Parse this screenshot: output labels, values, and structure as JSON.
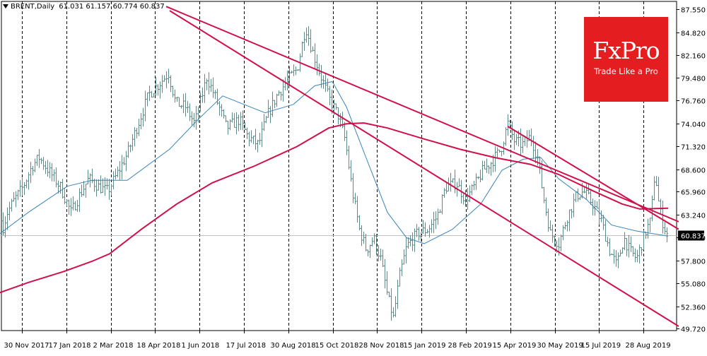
{
  "header": {
    "symbol": "BRENT,Daily",
    "open": "61.031",
    "high": "61.157",
    "low": "60.774",
    "close": "60.837"
  },
  "logo": {
    "brand": "FxPro",
    "tagline": "Trade Like a Pro",
    "color": "#e41e20"
  },
  "colors": {
    "candle": "#5a8a8a",
    "ma_short": "#3a84b8",
    "ma_long": "#d0104a",
    "trendline": "#d0104a",
    "price_label_bg": "#000000"
  },
  "chart_data": {
    "type": "candlestick",
    "ylim": [
      49.5,
      88.5
    ],
    "grid": "vertical dashed",
    "y_ticks": [
      "87.550",
      "84.820",
      "82.160",
      "79.480",
      "76.760",
      "74.040",
      "71.320",
      "68.600",
      "65.960",
      "63.240",
      "60.520",
      "57.800",
      "55.080",
      "52.360",
      "49.720"
    ],
    "x_ticks": [
      "30 Nov 2017",
      "17 Jan 2018",
      "2 Mar 2018",
      "18 Apr 2018",
      "1 Jun 2018",
      "17 Jul 2018",
      "30 Aug 2018",
      "15 Oct 2018",
      "28 Nov 2018",
      "15 Jan 2019",
      "28 Feb 2019",
      "15 Apr 2019",
      "30 May 2019",
      "15 Jul 2019",
      "28 Aug 2019"
    ],
    "last_price": "60.837",
    "price_keyframes": [
      [
        0,
        62.5
      ],
      [
        4,
        61.8
      ],
      [
        10,
        63.5
      ],
      [
        20,
        65.0
      ],
      [
        32,
        66.5
      ],
      [
        45,
        69.0
      ],
      [
        55,
        70.0
      ],
      [
        68,
        68.5
      ],
      [
        85,
        66.5
      ],
      [
        100,
        63.5
      ],
      [
        112,
        65.5
      ],
      [
        125,
        67.5
      ],
      [
        140,
        66.5
      ],
      [
        152,
        66.0
      ],
      [
        165,
        68.0
      ],
      [
        180,
        70.5
      ],
      [
        195,
        74.0
      ],
      [
        210,
        77.5
      ],
      [
        222,
        78.5
      ],
      [
        238,
        80.0
      ],
      [
        248,
        76.5
      ],
      [
        262,
        76.0
      ],
      [
        275,
        74.0
      ],
      [
        292,
        79.5
      ],
      [
        305,
        77.0
      ],
      [
        320,
        73.5
      ],
      [
        338,
        74.5
      ],
      [
        350,
        72.5
      ],
      [
        365,
        71.5
      ],
      [
        378,
        75.0
      ],
      [
        392,
        77.5
      ],
      [
        405,
        79.0
      ],
      [
        420,
        80.5
      ],
      [
        432,
        85.5
      ],
      [
        440,
        83.0
      ],
      [
        452,
        80.0
      ],
      [
        465,
        77.0
      ],
      [
        478,
        75.0
      ],
      [
        488,
        72.0
      ],
      [
        498,
        66.0
      ],
      [
        508,
        61.5
      ],
      [
        518,
        59.0
      ],
      [
        528,
        60.5
      ],
      [
        538,
        58.0
      ],
      [
        548,
        53.5
      ],
      [
        556,
        51.0
      ],
      [
        565,
        56.0
      ],
      [
        575,
        59.5
      ],
      [
        590,
        61.0
      ],
      [
        605,
        61.5
      ],
      [
        618,
        63.0
      ],
      [
        630,
        66.5
      ],
      [
        645,
        67.0
      ],
      [
        658,
        65.0
      ],
      [
        670,
        66.5
      ],
      [
        683,
        68.5
      ],
      [
        695,
        69.5
      ],
      [
        708,
        71.0
      ],
      [
        718,
        74.0
      ],
      [
        727,
        72.0
      ],
      [
        738,
        71.5
      ],
      [
        750,
        72.5
      ],
      [
        760,
        70.0
      ],
      [
        768,
        65.5
      ],
      [
        778,
        61.0
      ],
      [
        790,
        59.8
      ],
      [
        802,
        63.0
      ],
      [
        815,
        65.5
      ],
      [
        825,
        66.0
      ],
      [
        838,
        64.5
      ],
      [
        850,
        62.5
      ],
      [
        862,
        59.0
      ],
      [
        872,
        57.2
      ],
      [
        882,
        60.5
      ],
      [
        890,
        59.0
      ],
      [
        900,
        58.0
      ],
      [
        908,
        60.0
      ],
      [
        914,
        61.5
      ],
      [
        920,
        62.5
      ],
      [
        926,
        68.5
      ],
      [
        932,
        64.0
      ],
      [
        938,
        62.0
      ],
      [
        944,
        60.8
      ]
    ],
    "ma_short": [
      [
        0,
        61.0
      ],
      [
        40,
        63.5
      ],
      [
        95,
        66.6
      ],
      [
        130,
        67.3
      ],
      [
        180,
        67.3
      ],
      [
        240,
        71.0
      ],
      [
        280,
        74.5
      ],
      [
        315,
        77.3
      ],
      [
        345,
        76.3
      ],
      [
        375,
        75.3
      ],
      [
        415,
        76.3
      ],
      [
        445,
        78.5
      ],
      [
        470,
        79.0
      ],
      [
        490,
        76.0
      ],
      [
        520,
        69.5
      ],
      [
        548,
        63.5
      ],
      [
        575,
        60.5
      ],
      [
        600,
        59.8
      ],
      [
        640,
        61.5
      ],
      [
        680,
        64.5
      ],
      [
        710,
        68.5
      ],
      [
        740,
        69.8
      ],
      [
        765,
        70.0
      ],
      [
        790,
        67.5
      ],
      [
        830,
        65.0
      ],
      [
        865,
        62.0
      ],
      [
        900,
        61.3
      ],
      [
        945,
        60.7
      ]
    ],
    "ma_long": [
      [
        0,
        54.0
      ],
      [
        40,
        55.2
      ],
      [
        90,
        56.5
      ],
      [
        130,
        57.7
      ],
      [
        155,
        58.6
      ],
      [
        200,
        61.5
      ],
      [
        250,
        64.5
      ],
      [
        300,
        67.0
      ],
      [
        360,
        69.0
      ],
      [
        420,
        71.3
      ],
      [
        465,
        73.5
      ],
      [
        490,
        74.0
      ],
      [
        515,
        74.1
      ],
      [
        548,
        73.5
      ],
      [
        600,
        72.2
      ],
      [
        650,
        71.0
      ],
      [
        700,
        70.0
      ],
      [
        750,
        69.2
      ],
      [
        790,
        68.0
      ],
      [
        840,
        66.0
      ],
      [
        880,
        64.5
      ],
      [
        905,
        63.9
      ],
      [
        945,
        64.0
      ]
    ],
    "trendlines": [
      [
        [
          235,
          87.9
        ],
        [
          960,
          62.4
        ]
      ],
      [
        [
          240,
          87.4
        ],
        [
          960,
          50.0
        ]
      ],
      [
        [
          718,
          73.7
        ],
        [
          960,
          61.5
        ]
      ]
    ]
  }
}
